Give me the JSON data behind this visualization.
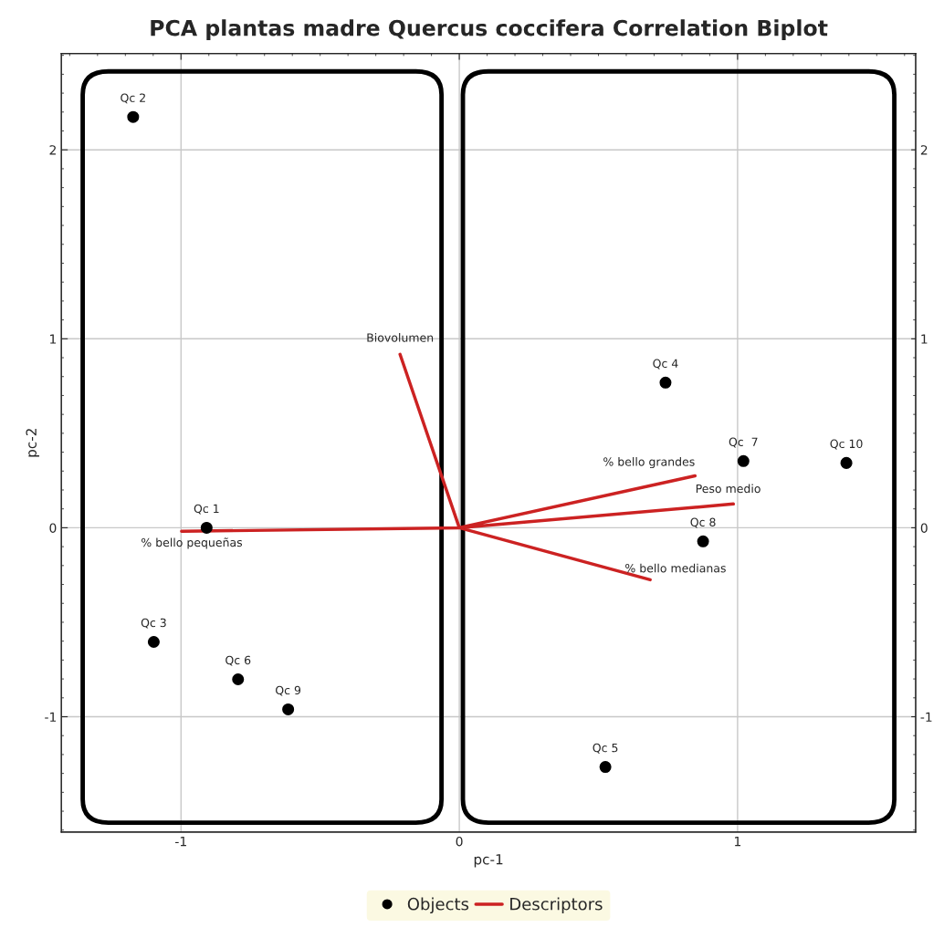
{
  "chart_data": {
    "type": "scatter",
    "title": "PCA plantas madre Quercus coccifera Correlation Biplot",
    "xlabel": "pc-1",
    "ylabel": "pc-2",
    "xlim": [
      -1.43,
      1.64
    ],
    "ylim": [
      -1.61,
      2.51
    ],
    "xticks": [
      -1,
      0,
      1
    ],
    "yticks": [
      -1,
      0,
      1,
      2
    ],
    "y2lim": [
      -1.61,
      2.51
    ],
    "y2ticks": [
      -1,
      0,
      1,
      2
    ],
    "grid": true,
    "legend": "bottom",
    "series": [
      {
        "name": "Objects",
        "marker": "circle",
        "color": "#000000",
        "x": [
          -0.908,
          -1.172,
          -1.098,
          0.741,
          0.525,
          -0.795,
          1.021,
          0.876,
          -0.615,
          1.391
        ],
        "values": [
          0.0,
          2.174,
          -0.604,
          0.768,
          -1.266,
          -0.802,
          0.353,
          -0.072,
          -0.961,
          0.343
        ]
      },
      {
        "name": "Descriptors",
        "type": "line",
        "color": "#cc2222",
        "x": [
          0,
          -0.213,
          null,
          0,
          -0.998,
          null,
          0,
          0.847,
          null,
          0,
          0.985,
          null,
          0,
          0.686
        ],
        "values": [
          0,
          0.918,
          null,
          0,
          -0.019,
          null,
          0,
          0.275,
          null,
          0,
          0.126,
          null,
          0,
          -0.275
        ]
      }
    ],
    "annotations": [
      {
        "text": "Qc 1",
        "x": -0.908,
        "y": 0.0
      },
      {
        "text": "Qc 2",
        "x": -1.172,
        "y": 2.174
      },
      {
        "text": "Qc 3",
        "x": -1.098,
        "y": -0.604
      },
      {
        "text": "Qc 4",
        "x": 0.741,
        "y": 0.768
      },
      {
        "text": "Qc 5",
        "x": 0.525,
        "y": -1.266
      },
      {
        "text": "Qc 6",
        "x": -0.795,
        "y": -0.802
      },
      {
        "text": "Qc  7",
        "x": 1.021,
        "y": 0.353
      },
      {
        "text": "Qc 8",
        "x": 0.876,
        "y": -0.072
      },
      {
        "text": "Qc 9",
        "x": -0.615,
        "y": -0.961
      },
      {
        "text": "Qc 10",
        "x": 1.391,
        "y": 0.343
      },
      {
        "text": "Biovolumen",
        "x": -0.213,
        "y": 0.918
      },
      {
        "text": "% bello pequeñas",
        "x": -0.998,
        "y": -0.019
      },
      {
        "text": "% bello grandes",
        "x": 0.847,
        "y": 0.275
      },
      {
        "text": "Peso medio",
        "x": 0.985,
        "y": 0.126
      },
      {
        "text": "% bello medianas",
        "x": 0.686,
        "y": -0.275
      }
    ]
  }
}
